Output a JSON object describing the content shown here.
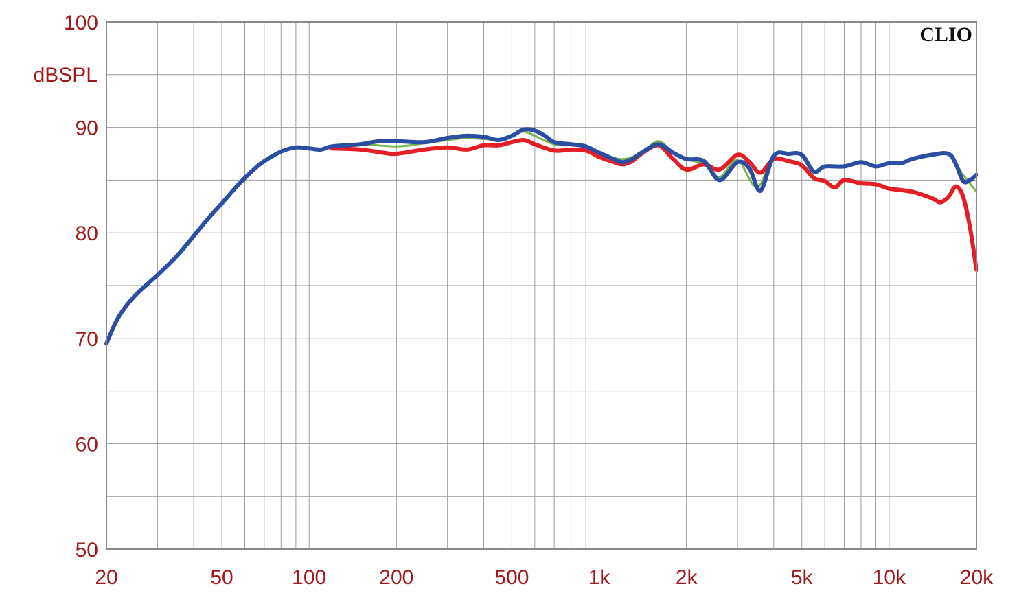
{
  "chart_data": {
    "type": "line",
    "brand": "CLIO",
    "ylabel": "dBSPL",
    "xlabel": "",
    "xscale": "log",
    "xlim": [
      20,
      20000
    ],
    "ylim": [
      50,
      100
    ],
    "grid": true,
    "x_ticks": [
      {
        "value": 20,
        "label": "20"
      },
      {
        "value": 50,
        "label": "50"
      },
      {
        "value": 100,
        "label": "100"
      },
      {
        "value": 200,
        "label": "200"
      },
      {
        "value": 500,
        "label": "500"
      },
      {
        "value": 1000,
        "label": "1k"
      },
      {
        "value": 2000,
        "label": "2k"
      },
      {
        "value": 5000,
        "label": "5k"
      },
      {
        "value": 10000,
        "label": "10k"
      },
      {
        "value": 20000,
        "label": "20k"
      }
    ],
    "y_ticks": [
      {
        "value": 100,
        "label": "100"
      },
      {
        "value": 90,
        "label": "90"
      },
      {
        "value": 80,
        "label": "80"
      },
      {
        "value": 70,
        "label": "70"
      },
      {
        "value": 60,
        "label": "60"
      },
      {
        "value": 50,
        "label": "50"
      }
    ],
    "series": [
      {
        "color": "#7ab648",
        "points": [
          [
            120,
            88.2
          ],
          [
            150,
            88.4
          ],
          [
            200,
            88.2
          ],
          [
            250,
            88.5
          ],
          [
            300,
            88.8
          ],
          [
            350,
            89.0
          ],
          [
            400,
            88.9
          ],
          [
            450,
            88.9
          ],
          [
            500,
            89.3
          ],
          [
            550,
            89.6
          ],
          [
            600,
            89.2
          ],
          [
            700,
            88.4
          ],
          [
            800,
            88.3
          ],
          [
            900,
            88.3
          ],
          [
            1000,
            87.6
          ],
          [
            1200,
            87.0
          ],
          [
            1400,
            87.6
          ],
          [
            1600,
            88.7
          ],
          [
            1800,
            87.6
          ],
          [
            2000,
            87.0
          ],
          [
            2300,
            86.5
          ],
          [
            2600,
            85.3
          ],
          [
            3000,
            86.9
          ],
          [
            3500,
            84.3
          ],
          [
            4000,
            87.4
          ],
          [
            4500,
            87.6
          ],
          [
            5000,
            87.4
          ],
          [
            5500,
            85.9
          ],
          [
            6000,
            86.3
          ],
          [
            7000,
            86.3
          ],
          [
            8000,
            86.8
          ],
          [
            9000,
            86.3
          ],
          [
            10000,
            86.6
          ],
          [
            11000,
            86.6
          ],
          [
            12000,
            87.0
          ],
          [
            14000,
            87.4
          ],
          [
            16000,
            87.4
          ],
          [
            18000,
            85.5
          ],
          [
            20000,
            83.9
          ]
        ]
      },
      {
        "color": "#e31e24",
        "points": [
          [
            120,
            88.0
          ],
          [
            150,
            87.9
          ],
          [
            180,
            87.6
          ],
          [
            200,
            87.5
          ],
          [
            250,
            87.9
          ],
          [
            300,
            88.1
          ],
          [
            350,
            87.9
          ],
          [
            400,
            88.3
          ],
          [
            450,
            88.3
          ],
          [
            500,
            88.6
          ],
          [
            550,
            88.8
          ],
          [
            600,
            88.4
          ],
          [
            700,
            87.8
          ],
          [
            800,
            87.9
          ],
          [
            900,
            87.8
          ],
          [
            1000,
            87.2
          ],
          [
            1100,
            86.8
          ],
          [
            1200,
            86.5
          ],
          [
            1300,
            86.8
          ],
          [
            1400,
            87.5
          ],
          [
            1600,
            88.3
          ],
          [
            1800,
            87.0
          ],
          [
            2000,
            86.0
          ],
          [
            2300,
            86.5
          ],
          [
            2600,
            86.0
          ],
          [
            3000,
            87.4
          ],
          [
            3300,
            86.7
          ],
          [
            3600,
            85.7
          ],
          [
            4000,
            87.0
          ],
          [
            4500,
            86.8
          ],
          [
            5000,
            86.4
          ],
          [
            5500,
            85.2
          ],
          [
            6000,
            84.9
          ],
          [
            6500,
            84.3
          ],
          [
            7000,
            85.0
          ],
          [
            8000,
            84.7
          ],
          [
            9000,
            84.6
          ],
          [
            10000,
            84.2
          ],
          [
            12000,
            83.9
          ],
          [
            14000,
            83.3
          ],
          [
            15000,
            82.9
          ],
          [
            16000,
            83.4
          ],
          [
            17000,
            84.4
          ],
          [
            18000,
            83.4
          ],
          [
            19000,
            80.5
          ],
          [
            20000,
            76.5
          ]
        ]
      },
      {
        "color": "#2b4ea2",
        "points": [
          [
            20,
            69.5
          ],
          [
            22,
            72.0
          ],
          [
            25,
            74.0
          ],
          [
            30,
            76.0
          ],
          [
            35,
            77.8
          ],
          [
            40,
            79.7
          ],
          [
            45,
            81.4
          ],
          [
            50,
            82.8
          ],
          [
            55,
            84.1
          ],
          [
            60,
            85.2
          ],
          [
            65,
            86.1
          ],
          [
            70,
            86.8
          ],
          [
            80,
            87.7
          ],
          [
            90,
            88.1
          ],
          [
            100,
            88.0
          ],
          [
            110,
            87.9
          ],
          [
            120,
            88.2
          ],
          [
            150,
            88.4
          ],
          [
            175,
            88.7
          ],
          [
            200,
            88.7
          ],
          [
            250,
            88.6
          ],
          [
            300,
            89.0
          ],
          [
            350,
            89.2
          ],
          [
            400,
            89.1
          ],
          [
            450,
            88.8
          ],
          [
            500,
            89.2
          ],
          [
            550,
            89.8
          ],
          [
            600,
            89.7
          ],
          [
            650,
            89.2
          ],
          [
            700,
            88.6
          ],
          [
            800,
            88.4
          ],
          [
            900,
            88.2
          ],
          [
            1000,
            87.6
          ],
          [
            1100,
            87.1
          ],
          [
            1200,
            86.7
          ],
          [
            1300,
            87.0
          ],
          [
            1400,
            87.6
          ],
          [
            1600,
            88.4
          ],
          [
            1800,
            87.6
          ],
          [
            2000,
            87.0
          ],
          [
            2300,
            86.8
          ],
          [
            2600,
            85.0
          ],
          [
            3000,
            86.7
          ],
          [
            3300,
            86.1
          ],
          [
            3600,
            84.0
          ],
          [
            4000,
            87.3
          ],
          [
            4500,
            87.5
          ],
          [
            5000,
            87.4
          ],
          [
            5500,
            85.8
          ],
          [
            6000,
            86.3
          ],
          [
            7000,
            86.3
          ],
          [
            8000,
            86.7
          ],
          [
            9000,
            86.3
          ],
          [
            10000,
            86.6
          ],
          [
            11000,
            86.6
          ],
          [
            12000,
            87.0
          ],
          [
            14000,
            87.4
          ],
          [
            16000,
            87.5
          ],
          [
            17000,
            86.5
          ],
          [
            18000,
            84.9
          ],
          [
            19000,
            85.0
          ],
          [
            20000,
            85.5
          ]
        ]
      }
    ]
  }
}
